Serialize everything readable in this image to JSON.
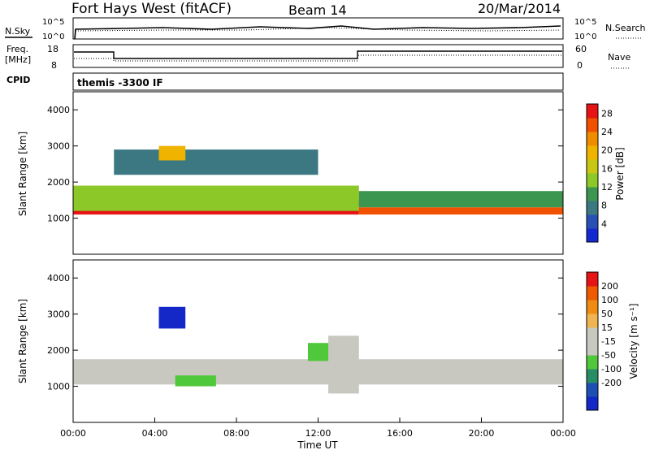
{
  "header": {
    "site": "Fort Hays West (fitACF)",
    "beam": "Beam 14",
    "date": "20/Mar/2014"
  },
  "top_panels": {
    "nsky_label": "N.Sky",
    "nsearch_label": "N.Search",
    "noise_ticks": [
      "10^5",
      "10^0"
    ],
    "freq_label": "Freq.",
    "freq_unit": "[MHz]",
    "freq_ticks": [
      "18",
      "8"
    ],
    "nave_label": "Nave",
    "nave_ticks": [
      "60",
      "0"
    ],
    "cpid_label": "CPID",
    "cpid_value": "themis -3300 IF"
  },
  "chart_data": [
    {
      "type": "heatmap",
      "id": "power",
      "ylabel": "Slant Range [km]",
      "ylim": [
        0,
        4500
      ],
      "yticks": [
        1000,
        2000,
        3000,
        4000
      ],
      "xlim": [
        0,
        24
      ],
      "colorbar": {
        "label": "Power [dB]",
        "ticks": [
          4,
          8,
          12,
          16,
          20,
          24,
          28
        ],
        "colors": [
          "#1428d2",
          "#2850b4",
          "#3c7882",
          "#3c9650",
          "#8cc828",
          "#c8c814",
          "#f0b400",
          "#f08c00",
          "#f05000",
          "#e61414"
        ],
        "range": [
          0,
          30
        ]
      },
      "bands": [
        {
          "range": [
            1100,
            1500
          ],
          "t": [
            0,
            14
          ],
          "level": 27
        },
        {
          "range": [
            1200,
            1900
          ],
          "t": [
            0,
            14
          ],
          "level": 14
        },
        {
          "range": [
            1100,
            1300
          ],
          "t": [
            14,
            24
          ],
          "level": 26
        },
        {
          "range": [
            1300,
            1750
          ],
          "t": [
            14,
            24
          ],
          "level": 10
        },
        {
          "range": [
            2200,
            2900
          ],
          "t": [
            2,
            12
          ],
          "level": 8
        },
        {
          "range": [
            2600,
            3000
          ],
          "t": [
            4.2,
            5.5
          ],
          "level": 19
        },
        {
          "range": [
            1400,
            1800
          ],
          "t": [
            5,
            7
          ],
          "level": 12
        }
      ]
    },
    {
      "type": "heatmap",
      "id": "velocity",
      "ylabel": "Slant Range [km]",
      "ylim": [
        0,
        4500
      ],
      "yticks": [
        1000,
        2000,
        3000,
        4000
      ],
      "xlim": [
        0,
        24
      ],
      "xticks": [
        "00:00",
        "04:00",
        "08:00",
        "12:00",
        "16:00",
        "20:00",
        "00:00"
      ],
      "xlabel": "Time UT",
      "colorbar": {
        "label": "Velocity [m s⁻¹]",
        "ticks": [
          200,
          100,
          50,
          15,
          -15,
          -50,
          -100,
          -200
        ],
        "colors": [
          "#1428c8",
          "#1e50b4",
          "#288c64",
          "#50c83c",
          "#c8c8c0",
          "#c8c8c0",
          "#f0b450",
          "#f08c14",
          "#f05a00",
          "#e61414"
        ],
        "range": [
          -250,
          250
        ]
      },
      "bands": [
        {
          "range": [
            1050,
            1750
          ],
          "t": [
            0,
            14
          ],
          "level": -5
        },
        {
          "range": [
            1050,
            1750
          ],
          "t": [
            14,
            24
          ],
          "level": -5
        },
        {
          "range": [
            2600,
            3200
          ],
          "t": [
            4.2,
            5.5
          ],
          "level": -220
        },
        {
          "range": [
            1000,
            1300
          ],
          "t": [
            5,
            7
          ],
          "level": -70
        },
        {
          "range": [
            1700,
            2200
          ],
          "t": [
            11.5,
            13
          ],
          "level": -80
        },
        {
          "range": [
            800,
            2400
          ],
          "t": [
            12.5,
            14
          ],
          "level": 45
        }
      ]
    }
  ]
}
